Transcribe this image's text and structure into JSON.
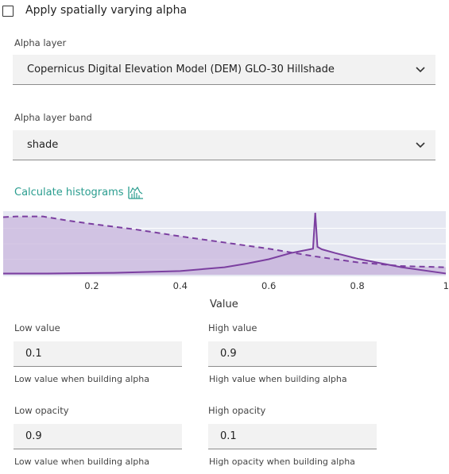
{
  "checkbox": {
    "label": "Apply spatially varying alpha",
    "checked": false
  },
  "alpha_layer": {
    "label": "Alpha layer",
    "value": "Copernicus Digital Elevation Model (DEM) GLO-30 Hillshade"
  },
  "alpha_band": {
    "label": "Alpha layer band",
    "value": "shade"
  },
  "calculate": {
    "label": "Calculate histograms",
    "icon": "histogram-icon",
    "color": "#2a9d8f"
  },
  "chart_data": {
    "type": "area",
    "xlabel": "Value",
    "xlim": [
      0,
      1
    ],
    "x_ticks": [
      "0.2",
      "0.4",
      "0.6",
      "0.8",
      "1"
    ],
    "series": [
      {
        "style": "dashed",
        "x": [
          0,
          0.03,
          0.09,
          0.15,
          0.2,
          0.3,
          0.4,
          0.5,
          0.6,
          0.7,
          0.8,
          0.9,
          1.0
        ],
        "y": [
          0.93,
          0.94,
          0.94,
          0.87,
          0.82,
          0.73,
          0.62,
          0.52,
          0.42,
          0.3,
          0.2,
          0.14,
          0.12
        ]
      },
      {
        "style": "solid",
        "x": [
          0,
          0.1,
          0.25,
          0.4,
          0.5,
          0.55,
          0.6,
          0.65,
          0.7,
          0.705,
          0.71,
          0.715,
          0.72,
          0.75,
          0.8,
          0.9,
          1.0
        ],
        "y": [
          0.02,
          0.02,
          0.03,
          0.06,
          0.12,
          0.18,
          0.25,
          0.35,
          0.42,
          1.0,
          0.45,
          0.43,
          0.41,
          0.35,
          0.26,
          0.12,
          0.02
        ]
      }
    ],
    "colors": {
      "line": "#7b3fa0",
      "fill": "#c9b7dd",
      "plot_bg": "#e6e8f2"
    }
  },
  "low_value": {
    "label": "Low value",
    "value": "0.1",
    "helper": "Low value when building alpha"
  },
  "high_value": {
    "label": "High value",
    "value": "0.9",
    "helper": "High value when building alpha"
  },
  "low_opacity": {
    "label": "Low opacity",
    "value": "0.9",
    "helper": "Low value when building alpha"
  },
  "high_opacity": {
    "label": "High opacity",
    "value": "0.1",
    "helper": "High opacity when building alpha"
  }
}
